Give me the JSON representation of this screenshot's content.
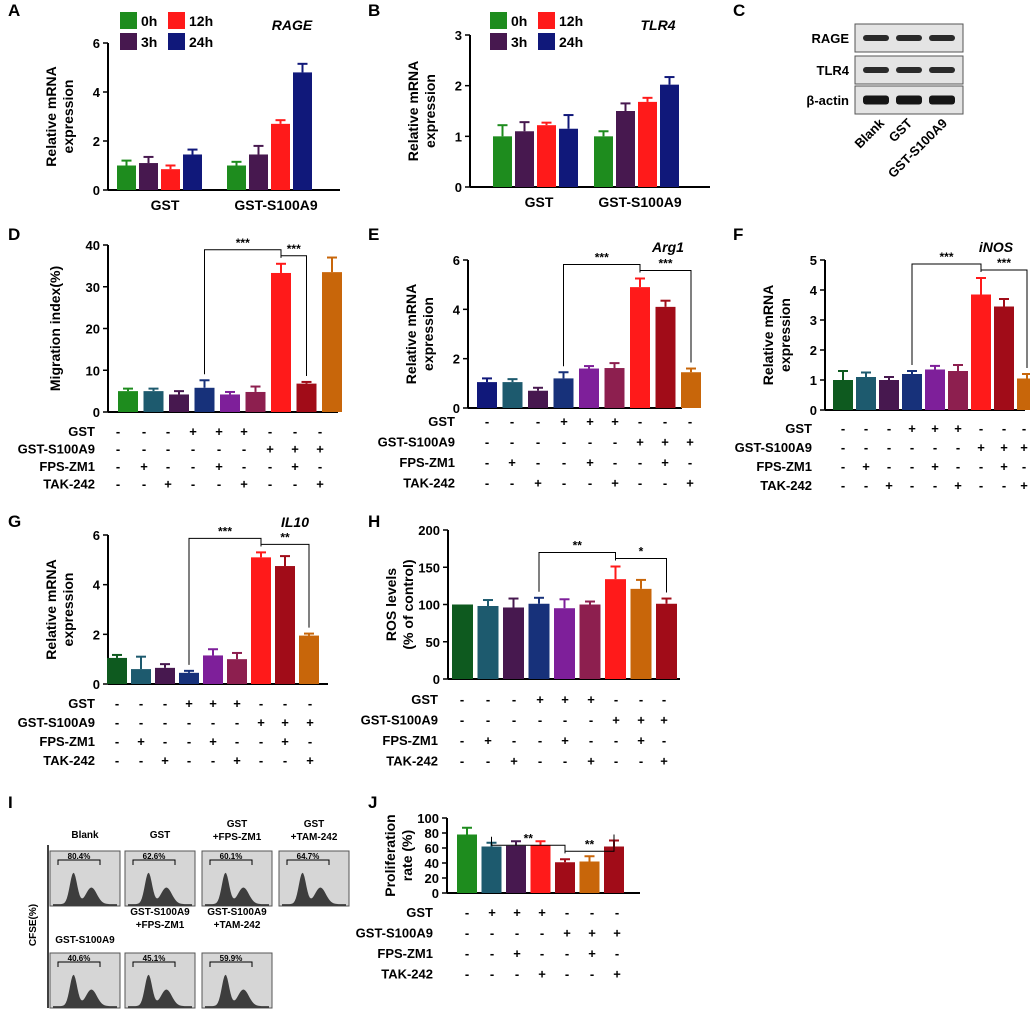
{
  "colors": {
    "green": "#1e8c1e",
    "teal": "#1d5a6e",
    "purple": "#47184f",
    "blue": "#17317a",
    "violet": "#7e1f9a",
    "maroon": "#8d1f4f",
    "red": "#ff1a1a",
    "darkred": "#a10c18",
    "orange": "#c8660a",
    "navy": "#10187a",
    "darkgreen": "#0e5a1f"
  },
  "chart_data": [
    {
      "panel": "A",
      "type": "bar",
      "title": "RAGE",
      "ylabel": [
        "Relative mRNA",
        "expression"
      ],
      "ylim": [
        0,
        6
      ],
      "yticks": [
        0,
        2,
        4,
        6
      ],
      "legend": [
        "0h",
        "3h",
        "12h",
        "24h"
      ],
      "legend_colors": [
        "green",
        "purple",
        "red",
        "navy"
      ],
      "groups": [
        "GST",
        "GST-S100A9"
      ],
      "bars": [
        {
          "group": 0,
          "value": 1.0,
          "err": 0.2,
          "color": "green"
        },
        {
          "group": 0,
          "value": 1.1,
          "err": 0.25,
          "color": "purple"
        },
        {
          "group": 0,
          "value": 0.85,
          "err": 0.15,
          "color": "red"
        },
        {
          "group": 0,
          "value": 1.45,
          "err": 0.2,
          "color": "navy"
        },
        {
          "group": 1,
          "value": 1.0,
          "err": 0.15,
          "color": "green"
        },
        {
          "group": 1,
          "value": 1.45,
          "err": 0.35,
          "color": "purple"
        },
        {
          "group": 1,
          "value": 2.7,
          "err": 0.15,
          "color": "red"
        },
        {
          "group": 1,
          "value": 4.8,
          "err": 0.35,
          "color": "navy"
        }
      ]
    },
    {
      "panel": "B",
      "type": "bar",
      "title": "TLR4",
      "ylabel": [
        "Relative mRNA",
        "expression"
      ],
      "ylim": [
        0,
        3
      ],
      "yticks": [
        0,
        1,
        2,
        3
      ],
      "legend": [
        "0h",
        "3h",
        "12h",
        "24h"
      ],
      "legend_colors": [
        "green",
        "purple",
        "red",
        "navy"
      ],
      "groups": [
        "GST",
        "GST-S100A9"
      ],
      "bars": [
        {
          "group": 0,
          "value": 1.0,
          "err": 0.22,
          "color": "green"
        },
        {
          "group": 0,
          "value": 1.1,
          "err": 0.18,
          "color": "purple"
        },
        {
          "group": 0,
          "value": 1.22,
          "err": 0.05,
          "color": "red"
        },
        {
          "group": 0,
          "value": 1.15,
          "err": 0.27,
          "color": "navy"
        },
        {
          "group": 1,
          "value": 1.0,
          "err": 0.1,
          "color": "green"
        },
        {
          "group": 1,
          "value": 1.5,
          "err": 0.15,
          "color": "purple"
        },
        {
          "group": 1,
          "value": 1.68,
          "err": 0.08,
          "color": "red"
        },
        {
          "group": 1,
          "value": 2.02,
          "err": 0.15,
          "color": "navy"
        }
      ]
    },
    {
      "panel": "D",
      "type": "bar",
      "title": "",
      "ylabel": [
        "Migration index(%)"
      ],
      "ylim": [
        0,
        40
      ],
      "yticks": [
        0,
        10,
        20,
        30,
        40
      ],
      "values": [
        5,
        5,
        4.2,
        5.8,
        4.2,
        4.8,
        33.3,
        6.8,
        33.5
      ],
      "errors": [
        0.6,
        0.6,
        0.8,
        1.8,
        0.6,
        1.3,
        2.2,
        0.4,
        3.5
      ],
      "colors": [
        "green",
        "teal",
        "purple",
        "blue",
        "violet",
        "maroon",
        "red",
        "darkred",
        "orange"
      ],
      "conditions": {
        "labels": [
          "GST",
          "GST-S100A9",
          "FPS-ZM1",
          "TAK-242"
        ],
        "signs": [
          [
            "-",
            "-",
            "-",
            "+",
            "+",
            "+",
            "-",
            "-",
            "-"
          ],
          [
            "-",
            "-",
            "-",
            "-",
            "-",
            "-",
            "+",
            "+",
            "+"
          ],
          [
            "-",
            "+",
            "-",
            "-",
            "+",
            "-",
            "-",
            "+",
            "-"
          ],
          [
            "-",
            "-",
            "+",
            "-",
            "-",
            "+",
            "-",
            "-",
            "+"
          ]
        ]
      },
      "sig": [
        {
          "from": 3,
          "to": 6,
          "label": "***"
        },
        {
          "from": 6,
          "to": 7,
          "label": "***"
        }
      ]
    },
    {
      "panel": "E",
      "type": "bar",
      "title": "Arg1",
      "ylabel": [
        "Relative mRNA",
        "expression"
      ],
      "ylim": [
        0,
        6
      ],
      "yticks": [
        0,
        2,
        4,
        6
      ],
      "values": [
        1.05,
        1.05,
        0.7,
        1.2,
        1.6,
        1.62,
        4.9,
        4.1,
        1.45
      ],
      "errors": [
        0.15,
        0.12,
        0.12,
        0.25,
        0.1,
        0.2,
        0.35,
        0.25,
        0.15
      ],
      "colors": [
        "navy",
        "teal",
        "purple",
        "blue",
        "violet",
        "maroon",
        "red",
        "darkred",
        "orange"
      ],
      "conditions": {
        "labels": [
          "GST",
          "GST-S100A9",
          "FPS-ZM1",
          "TAK-242"
        ],
        "signs": [
          [
            "-",
            "-",
            "-",
            "+",
            "+",
            "+",
            "-",
            "-",
            "-"
          ],
          [
            "-",
            "-",
            "-",
            "-",
            "-",
            "-",
            "+",
            "+",
            "+"
          ],
          [
            "-",
            "+",
            "-",
            "-",
            "+",
            "-",
            "-",
            "+",
            "-"
          ],
          [
            "-",
            "-",
            "+",
            "-",
            "-",
            "+",
            "-",
            "-",
            "+"
          ]
        ]
      },
      "sig": [
        {
          "from": 3,
          "to": 6,
          "label": "***"
        },
        {
          "from": 6,
          "to": 8,
          "label": "***"
        }
      ]
    },
    {
      "panel": "F",
      "type": "bar",
      "title": "iNOS",
      "ylabel": [
        "Relative mRNA",
        "expression"
      ],
      "ylim": [
        0,
        5
      ],
      "yticks": [
        0,
        1,
        2,
        3,
        4,
        5
      ],
      "values": [
        1.0,
        1.1,
        1.0,
        1.2,
        1.35,
        1.3,
        3.85,
        3.45,
        1.05
      ],
      "errors": [
        0.3,
        0.15,
        0.1,
        0.1,
        0.12,
        0.2,
        0.55,
        0.25,
        0.15
      ],
      "colors": [
        "darkgreen",
        "teal",
        "purple",
        "blue",
        "violet",
        "maroon",
        "red",
        "darkred",
        "orange"
      ],
      "conditions": {
        "labels": [
          "GST",
          "GST-S100A9",
          "FPS-ZM1",
          "TAK-242"
        ],
        "signs": [
          [
            "-",
            "-",
            "-",
            "+",
            "+",
            "+",
            "-",
            "-",
            "-"
          ],
          [
            "-",
            "-",
            "-",
            "-",
            "-",
            "-",
            "+",
            "+",
            "+"
          ],
          [
            "-",
            "+",
            "-",
            "-",
            "+",
            "-",
            "-",
            "+",
            "-"
          ],
          [
            "-",
            "-",
            "+",
            "-",
            "-",
            "+",
            "-",
            "-",
            "+"
          ]
        ]
      },
      "sig": [
        {
          "from": 3,
          "to": 6,
          "label": "***"
        },
        {
          "from": 6,
          "to": 8,
          "label": "***"
        }
      ]
    },
    {
      "panel": "G",
      "type": "bar",
      "title": "IL10",
      "ylabel": [
        "Relative mRNA",
        "expression"
      ],
      "ylim": [
        0,
        6
      ],
      "yticks": [
        0,
        2,
        4,
        6
      ],
      "values": [
        1.05,
        0.6,
        0.65,
        0.45,
        1.15,
        1.0,
        5.1,
        4.75,
        1.95
      ],
      "errors": [
        0.12,
        0.5,
        0.15,
        0.08,
        0.25,
        0.25,
        0.2,
        0.4,
        0.08
      ],
      "colors": [
        "darkgreen",
        "teal",
        "purple",
        "blue",
        "violet",
        "maroon",
        "red",
        "darkred",
        "orange"
      ],
      "conditions": {
        "labels": [
          "GST",
          "GST-S100A9",
          "FPS-ZM1",
          "TAK-242"
        ],
        "signs": [
          [
            "-",
            "-",
            "-",
            "+",
            "+",
            "+",
            "-",
            "-",
            "-"
          ],
          [
            "-",
            "-",
            "-",
            "-",
            "-",
            "-",
            "+",
            "+",
            "+"
          ],
          [
            "-",
            "+",
            "-",
            "-",
            "+",
            "-",
            "-",
            "+",
            "-"
          ],
          [
            "-",
            "-",
            "+",
            "-",
            "-",
            "+",
            "-",
            "-",
            "+"
          ]
        ]
      },
      "sig": [
        {
          "from": 3,
          "to": 6,
          "label": "***"
        },
        {
          "from": 6,
          "to": 8,
          "label": "**"
        }
      ]
    },
    {
      "panel": "H",
      "type": "bar",
      "title": "",
      "ylabel": [
        "ROS levels",
        "(% of control)"
      ],
      "ylim": [
        0,
        200
      ],
      "yticks": [
        0,
        50,
        100,
        150,
        200
      ],
      "values": [
        100,
        98,
        96,
        101,
        95,
        100,
        134,
        121,
        101
      ],
      "errors": [
        0,
        8,
        12,
        8,
        12,
        4,
        17,
        12,
        7
      ],
      "colors": [
        "darkgreen",
        "teal",
        "purple",
        "blue",
        "violet",
        "maroon",
        "red",
        "orange",
        "darkred"
      ],
      "conditions": {
        "labels": [
          "GST",
          "GST-S100A9",
          "FPS-ZM1",
          "TAK-242"
        ],
        "signs": [
          [
            "-",
            "-",
            "-",
            "+",
            "+",
            "+",
            "-",
            "-",
            "-"
          ],
          [
            "-",
            "-",
            "-",
            "-",
            "-",
            "-",
            "+",
            "+",
            "+"
          ],
          [
            "-",
            "+",
            "-",
            "-",
            "+",
            "-",
            "-",
            "+",
            "-"
          ],
          [
            "-",
            "-",
            "+",
            "-",
            "-",
            "+",
            "-",
            "-",
            "+"
          ]
        ]
      },
      "sig": [
        {
          "from": 3,
          "to": 6,
          "label": "**"
        },
        {
          "from": 6,
          "to": 8,
          "label": "*"
        }
      ]
    },
    {
      "panel": "J",
      "type": "bar",
      "title": "",
      "ylabel": [
        "Proliferation",
        "rate (%)"
      ],
      "ylim": [
        0,
        100
      ],
      "yticks": [
        0,
        20,
        40,
        60,
        80,
        100
      ],
      "values": [
        78,
        62,
        63,
        64,
        41,
        42,
        62
      ],
      "errors": [
        9,
        5,
        6,
        5,
        4,
        7,
        8
      ],
      "colors": [
        "green",
        "teal",
        "purple",
        "red",
        "darkred",
        "orange",
        "darkred"
      ],
      "conditions": {
        "labels": [
          "GST",
          "GST-S100A9",
          "FPS-ZM1",
          "TAK-242"
        ],
        "signs": [
          [
            "-",
            "+",
            "+",
            "+",
            "-",
            "-",
            "-"
          ],
          [
            "-",
            "-",
            "-",
            "-",
            "+",
            "+",
            "+"
          ],
          [
            "-",
            "-",
            "+",
            "-",
            "-",
            "+",
            "-"
          ],
          [
            "-",
            "-",
            "-",
            "+",
            "-",
            "-",
            "+"
          ]
        ]
      },
      "sig": [
        {
          "from": 1,
          "to": 4,
          "label": "**"
        },
        {
          "from": 4,
          "to": 6,
          "label": "**"
        }
      ]
    }
  ],
  "western_blot": {
    "panel": "C",
    "bands": [
      "RAGE",
      "TLR4",
      "β-actin"
    ],
    "lanes": [
      "Blank",
      "GST",
      "GST-S100A9"
    ]
  },
  "flow": {
    "panel": "I",
    "ylabel": "CFSE(%)",
    "row1": [
      {
        "title": [
          "Blank"
        ],
        "percent": "80.4%"
      },
      {
        "title": [
          "GST"
        ],
        "percent": "62.6%"
      },
      {
        "title": [
          "GST",
          "+FPS-ZM1"
        ],
        "percent": "60.1%"
      },
      {
        "title": [
          "GST",
          "+TAM-242"
        ],
        "percent": "64.7%"
      }
    ],
    "row2": [
      {
        "title": [
          "GST-S100A9"
        ],
        "percent": "40.6%"
      },
      {
        "title": [
          "GST-S100A9",
          "+FPS-ZM1"
        ],
        "percent": "45.1%"
      },
      {
        "title": [
          "GST-S100A9",
          "+TAM-242"
        ],
        "percent": "59.9%"
      }
    ]
  }
}
